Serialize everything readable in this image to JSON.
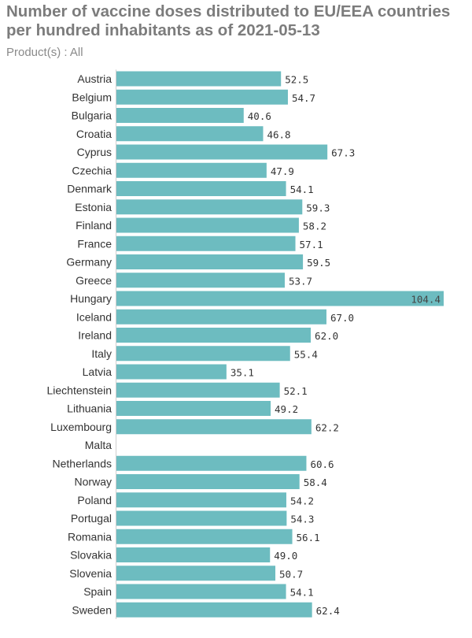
{
  "title": "Number of vaccine doses distributed to EU/EEA countries per hundred inhabitants as of 2021-05-13",
  "subtitle": "Product(s) : All",
  "colors": {
    "bar": "#6dbcc0",
    "axis": "#cfcfcf"
  },
  "chart_data": {
    "type": "bar",
    "orientation": "horizontal",
    "categories": [
      "Austria",
      "Belgium",
      "Bulgaria",
      "Croatia",
      "Cyprus",
      "Czechia",
      "Denmark",
      "Estonia",
      "Finland",
      "France",
      "Germany",
      "Greece",
      "Hungary",
      "Iceland",
      "Ireland",
      "Italy",
      "Latvia",
      "Liechtenstein",
      "Lithuania",
      "Luxembourg",
      "Malta",
      "Netherlands",
      "Norway",
      "Poland",
      "Portugal",
      "Romania",
      "Slovakia",
      "Slovenia",
      "Spain",
      "Sweden"
    ],
    "values": [
      52.5,
      54.7,
      40.6,
      46.8,
      67.3,
      47.9,
      54.1,
      59.3,
      58.2,
      57.1,
      59.5,
      53.7,
      104.4,
      67.0,
      62.0,
      55.4,
      35.1,
      52.1,
      49.2,
      62.2,
      null,
      60.6,
      58.4,
      54.2,
      54.3,
      56.1,
      49.0,
      50.7,
      54.1,
      62.4
    ],
    "value_labels": [
      "52.5",
      "54.7",
      "40.6",
      "46.8",
      "67.3",
      "47.9",
      "54.1",
      "59.3",
      "58.2",
      "57.1",
      "59.5",
      "53.7",
      "104.4",
      "67.0",
      "62.0",
      "55.4",
      "35.1",
      "52.1",
      "49.2",
      "62.2",
      "",
      "60.6",
      "58.4",
      "54.2",
      "54.3",
      "56.1",
      "49.0",
      "50.7",
      "54.1",
      "62.4"
    ],
    "xlim": [
      0,
      104.4
    ],
    "grid": false,
    "title": "Number of vaccine doses distributed to EU/EEA countries per hundred inhabitants as of 2021-05-13",
    "subtitle": "Product(s) : All",
    "xlabel": "",
    "ylabel": ""
  }
}
